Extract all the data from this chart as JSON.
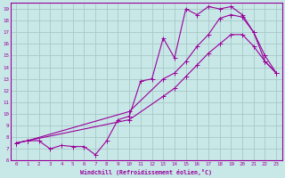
{
  "xlabel": "Windchill (Refroidissement éolien,°C)",
  "bg_color": "#c8e8e8",
  "grid_color": "#a8c8c8",
  "line_color": "#990099",
  "xlim": [
    -0.5,
    23.5
  ],
  "ylim": [
    6,
    19.5
  ],
  "xticks": [
    0,
    1,
    2,
    3,
    4,
    5,
    6,
    7,
    8,
    9,
    10,
    11,
    12,
    13,
    14,
    15,
    16,
    17,
    18,
    19,
    20,
    21,
    22,
    23
  ],
  "yticks": [
    6,
    7,
    8,
    9,
    10,
    11,
    12,
    13,
    14,
    15,
    16,
    17,
    18,
    19
  ],
  "line1_x": [
    0,
    1,
    2,
    3,
    4,
    5,
    6,
    7,
    8,
    9,
    10,
    11,
    12,
    13,
    14,
    15,
    16,
    17,
    18,
    19,
    20,
    21,
    22,
    23
  ],
  "line1_y": [
    7.5,
    7.7,
    7.7,
    7.0,
    7.3,
    7.2,
    7.2,
    6.5,
    7.7,
    9.5,
    9.8,
    12.8,
    13.0,
    16.5,
    14.8,
    19.0,
    18.5,
    19.2,
    19.0,
    19.2,
    18.5,
    17.0,
    14.5,
    13.5
  ],
  "line2_x": [
    0,
    1,
    10,
    13,
    14,
    15,
    16,
    17,
    18,
    19,
    20,
    21,
    22,
    23
  ],
  "line2_y": [
    7.5,
    7.7,
    10.2,
    13.0,
    13.5,
    14.5,
    15.8,
    16.8,
    18.2,
    18.5,
    18.3,
    17.0,
    15.0,
    13.5
  ],
  "line3_x": [
    0,
    1,
    10,
    13,
    14,
    15,
    16,
    17,
    18,
    19,
    20,
    21,
    22,
    23
  ],
  "line3_y": [
    7.5,
    7.7,
    9.5,
    11.5,
    12.2,
    13.2,
    14.2,
    15.2,
    16.0,
    16.8,
    16.8,
    15.8,
    14.5,
    13.5
  ]
}
